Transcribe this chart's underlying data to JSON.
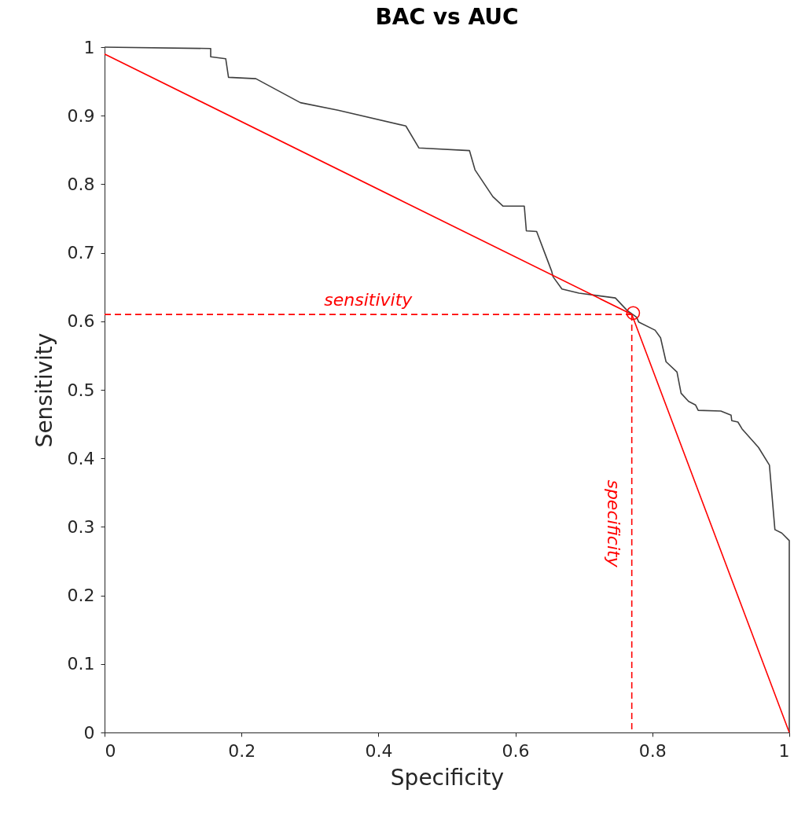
{
  "chart_data": {
    "type": "line",
    "title": "BAC vs AUC",
    "xlabel": "Specificity",
    "ylabel": "Sensitivity",
    "xlim": [
      0,
      1
    ],
    "ylim": [
      0,
      1
    ],
    "xticks": [
      0,
      0.2,
      0.4,
      0.6,
      0.8,
      1
    ],
    "yticks": [
      0,
      0.1,
      0.2,
      0.3,
      0.4,
      0.5,
      0.6,
      0.7,
      0.8,
      0.9,
      1
    ],
    "grid": false,
    "series": [
      {
        "color": "#404040",
        "line_style": "solid",
        "marker": "none",
        "x": [
          0,
          0.155,
          0.155,
          0.177,
          0.181,
          0.221,
          0.286,
          0.341,
          0.44,
          0.459,
          0.533,
          0.541,
          0.567,
          0.582,
          0.613,
          0.616,
          0.631,
          0.642,
          0.653,
          0.655,
          0.668,
          0.693,
          0.746,
          0.763,
          0.777,
          0.78,
          0.804,
          0.812,
          0.82,
          0.836,
          0.842,
          0.853,
          0.863,
          0.867,
          0.9,
          0.915,
          0.916,
          0.925,
          0.931,
          0.955,
          0.971,
          0.979,
          0.989,
          1,
          1
        ],
        "values": [
          1,
          0.998,
          0.986,
          0.983,
          0.956,
          0.954,
          0.919,
          0.908,
          0.885,
          0.853,
          0.849,
          0.821,
          0.782,
          0.768,
          0.768,
          0.732,
          0.731,
          0.702,
          0.673,
          0.665,
          0.647,
          0.641,
          0.634,
          0.616,
          0.606,
          0.599,
          0.587,
          0.576,
          0.541,
          0.526,
          0.495,
          0.483,
          0.478,
          0.47,
          0.469,
          0.463,
          0.455,
          0.453,
          0.443,
          0.416,
          0.39,
          0.296,
          0.291,
          0.28,
          0
        ]
      },
      {
        "color": "#ff0000",
        "line_style": "solid",
        "marker": "none",
        "x": [
          0,
          0.77,
          1
        ],
        "values": [
          0.99,
          0.61,
          0
        ]
      },
      {
        "color": "#ff0000",
        "line_style": "dashed",
        "marker": "none",
        "x": [
          0,
          0.77
        ],
        "values": [
          0.61,
          0.61
        ]
      },
      {
        "color": "#ff0000",
        "line_style": "dashed",
        "marker": "none",
        "x": [
          0.77,
          0.77
        ],
        "values": [
          0.61,
          0
        ]
      },
      {
        "type": "scatter",
        "color": "#ff0000",
        "marker": "circle",
        "x": [
          0.772
        ],
        "values": [
          0.612
        ]
      }
    ],
    "annotations": [
      "sensitivity",
      "specificity"
    ]
  }
}
